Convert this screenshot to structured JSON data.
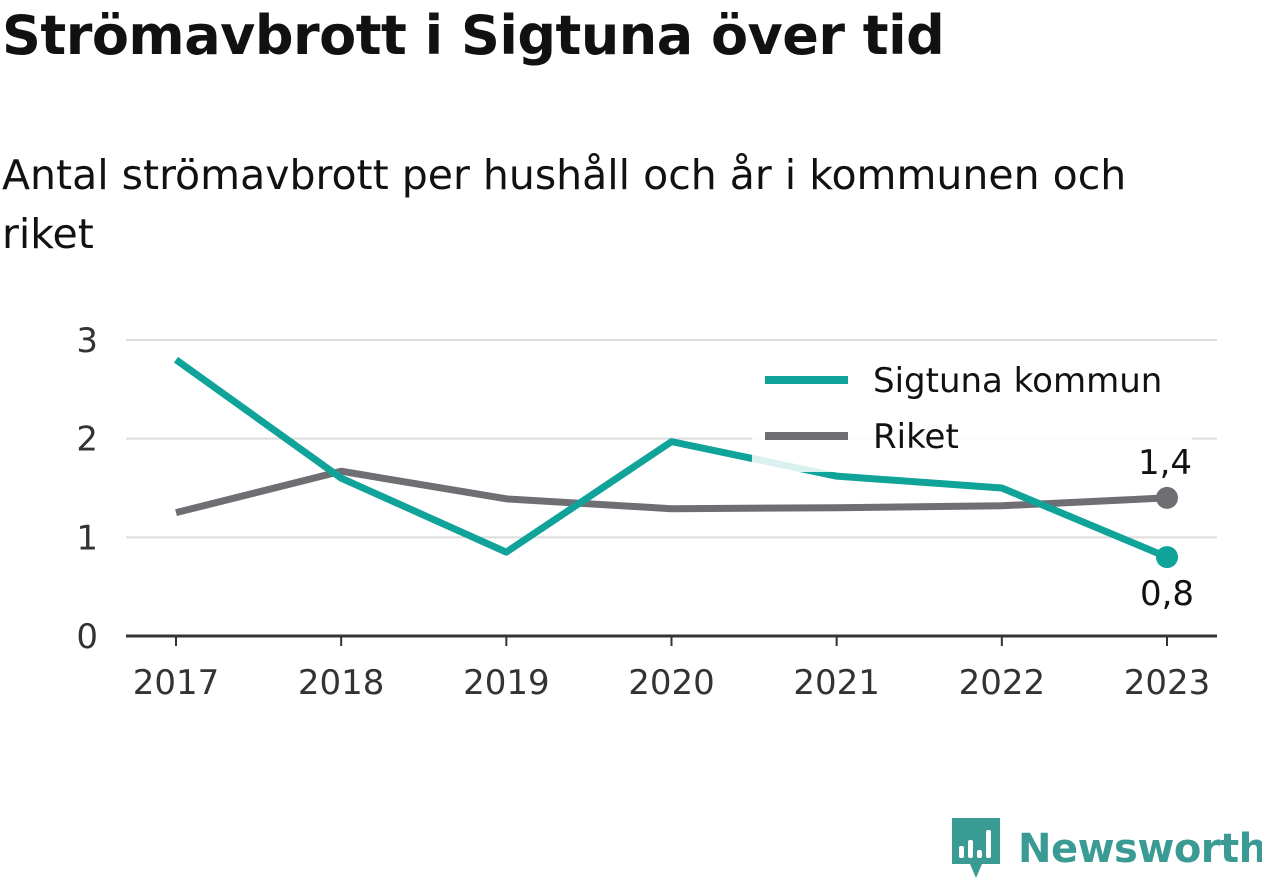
{
  "title": "Strömavbrott i Sigtuna över tid",
  "subtitle": "Antal strömavbrott per hushåll och år i kommunen och riket",
  "brand": {
    "name": "Newsworthy",
    "logo_icon": "newsworthy-bar-chart-icon",
    "color": "#3a9a94"
  },
  "chart_data": {
    "type": "line",
    "x": [
      "2017",
      "2018",
      "2019",
      "2020",
      "2021",
      "2022",
      "2023"
    ],
    "y_ticks": [
      "0",
      "1",
      "2",
      "3"
    ],
    "ylim": [
      0,
      3
    ],
    "grid": true,
    "legend_position": "top-right",
    "series": [
      {
        "name": "Sigtuna kommun",
        "color": "#0fa39a",
        "values": [
          2.8,
          1.6,
          0.85,
          1.97,
          1.62,
          1.5,
          0.8
        ],
        "end_label": "0,8"
      },
      {
        "name": "Riket",
        "color": "#6e6e73",
        "values": [
          1.25,
          1.67,
          1.39,
          1.29,
          1.3,
          1.32,
          1.4
        ],
        "end_label": "1,4"
      }
    ]
  }
}
